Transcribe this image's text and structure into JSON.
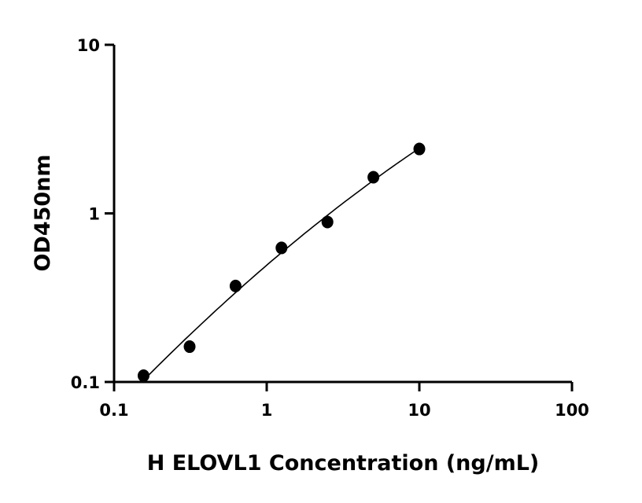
{
  "chart_data": {
    "type": "scatter",
    "title": "",
    "xlabel": "H ELOVL1 Concentration (ng/mL)",
    "ylabel": "OD450nm",
    "xscale": "log",
    "yscale": "log",
    "xlim": [
      0.1,
      100
    ],
    "ylim": [
      0.1,
      10
    ],
    "xticks": [
      "0.1",
      "1",
      "10",
      "100"
    ],
    "yticks": [
      "0.1",
      "1",
      "10"
    ],
    "grid": false,
    "fit_curve": true,
    "color": "#000000",
    "x": [
      0.156,
      0.3125,
      0.625,
      1.25,
      2.5,
      5,
      10
    ],
    "y": [
      0.109,
      0.162,
      0.371,
      0.624,
      0.889,
      1.638,
      2.41
    ]
  }
}
